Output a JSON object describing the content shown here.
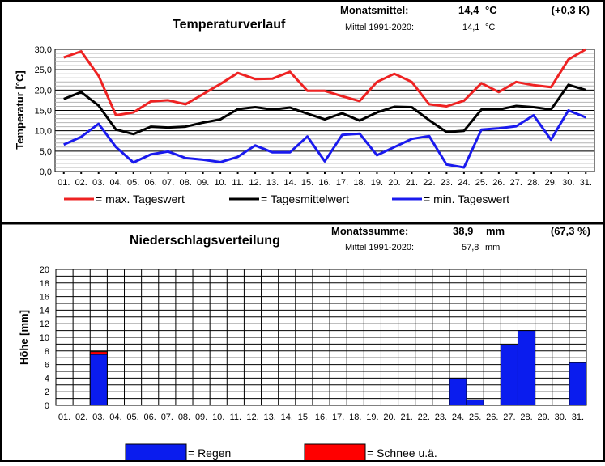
{
  "chart_data": [
    {
      "type": "line",
      "title": "Temperaturverlauf",
      "ylabel": "Temperatur [°C]",
      "ylim": [
        0,
        30
      ],
      "yticks": [
        "0,0",
        "5,0",
        "10,0",
        "15,0",
        "20,0",
        "25,0",
        "30,0"
      ],
      "categories": [
        "01.",
        "02.",
        "03.",
        "04.",
        "05.",
        "06.",
        "07.",
        "08.",
        "09.",
        "10.",
        "11.",
        "12.",
        "13.",
        "14.",
        "15.",
        "16.",
        "17.",
        "18.",
        "19.",
        "20.",
        "21.",
        "22.",
        "23.",
        "24.",
        "25.",
        "26.",
        "27.",
        "28.",
        "29.",
        "30.",
        "31."
      ],
      "grid": true,
      "stats": {
        "label": "Monatsmittel:",
        "value": "14,4",
        "unit": "°C",
        "diff": "(+0,3 K)",
        "ref_label": "Mittel 1991-2020:",
        "ref_value": "14,1",
        "ref_unit": "°C"
      },
      "series": [
        {
          "name": "= max.  Tageswert",
          "color": "#ee2222",
          "values": [
            28.0,
            29.5,
            23.5,
            13.8,
            14.5,
            17.2,
            17.5,
            16.5,
            19.0,
            21.5,
            24.2,
            22.7,
            22.8,
            24.5,
            19.8,
            19.8,
            18.5,
            17.3,
            22.0,
            24.0,
            22.0,
            16.5,
            16.0,
            17.4,
            21.7,
            19.5,
            22.0,
            21.2,
            20.7,
            27.5,
            30.0
          ]
        },
        {
          "name": "= Tagesmittelwert",
          "color": "#000000",
          "values": [
            17.8,
            19.5,
            16.2,
            10.3,
            9.2,
            11.0,
            10.8,
            11.0,
            12.0,
            12.8,
            15.3,
            15.8,
            15.2,
            15.7,
            14.2,
            12.8,
            14.3,
            12.5,
            14.5,
            15.9,
            15.8,
            12.6,
            9.7,
            10.0,
            15.2,
            15.2,
            16.1,
            15.8,
            15.2,
            21.3,
            20.0
          ]
        },
        {
          "name": "= min. Tageswert",
          "color": "#1a1aee",
          "values": [
            6.6,
            8.5,
            11.7,
            6.0,
            2.2,
            4.2,
            4.9,
            3.3,
            2.9,
            2.3,
            3.6,
            6.4,
            4.7,
            4.7,
            8.6,
            2.5,
            9.0,
            9.3,
            4.0,
            6.0,
            8.0,
            8.7,
            1.7,
            1.0,
            10.3,
            10.6,
            11.1,
            13.8,
            7.8,
            15.0,
            13.3
          ]
        }
      ]
    },
    {
      "type": "bar",
      "title": "Niederschlagsverteilung",
      "ylabel": "Höhe [mm]",
      "ylim": [
        0,
        20
      ],
      "yticks": [
        "0",
        "2",
        "4",
        "6",
        "8",
        "10",
        "12",
        "14",
        "16",
        "18",
        "20"
      ],
      "categories": [
        "01.",
        "02.",
        "03.",
        "04.",
        "05.",
        "06.",
        "07.",
        "08.",
        "09.",
        "10.",
        "11.",
        "12.",
        "13.",
        "14.",
        "15.",
        "16.",
        "17.",
        "18.",
        "19.",
        "20.",
        "21.",
        "22.",
        "23.",
        "24.",
        "25.",
        "26.",
        "27.",
        "28.",
        "29.",
        "30.",
        "31."
      ],
      "grid": true,
      "stats": {
        "label": "Monatssumme:",
        "value": "38,9",
        "unit": "mm",
        "diff": "(67,3 %)",
        "ref_label": "Mittel 1991-2020:",
        "ref_value": "57,8",
        "ref_unit": "mm"
      },
      "stacked": true,
      "series": [
        {
          "name": "= Regen",
          "color": "#0a1cee",
          "values": [
            0,
            0,
            7.5,
            0,
            0,
            0,
            0,
            0,
            0,
            0,
            0,
            0,
            0,
            0,
            0,
            0,
            0,
            0,
            0,
            0,
            0,
            0,
            0,
            4.0,
            0.8,
            0,
            8.9,
            11.0,
            0,
            0,
            6.3
          ]
        },
        {
          "name": "= Schnee u.ä.",
          "color": "#ff0000",
          "values": [
            0,
            0,
            0.4,
            0,
            0,
            0,
            0,
            0,
            0,
            0,
            0,
            0,
            0,
            0,
            0,
            0,
            0,
            0,
            0,
            0,
            0,
            0,
            0,
            0,
            0,
            0,
            0,
            0,
            0,
            0,
            0
          ]
        }
      ]
    }
  ]
}
